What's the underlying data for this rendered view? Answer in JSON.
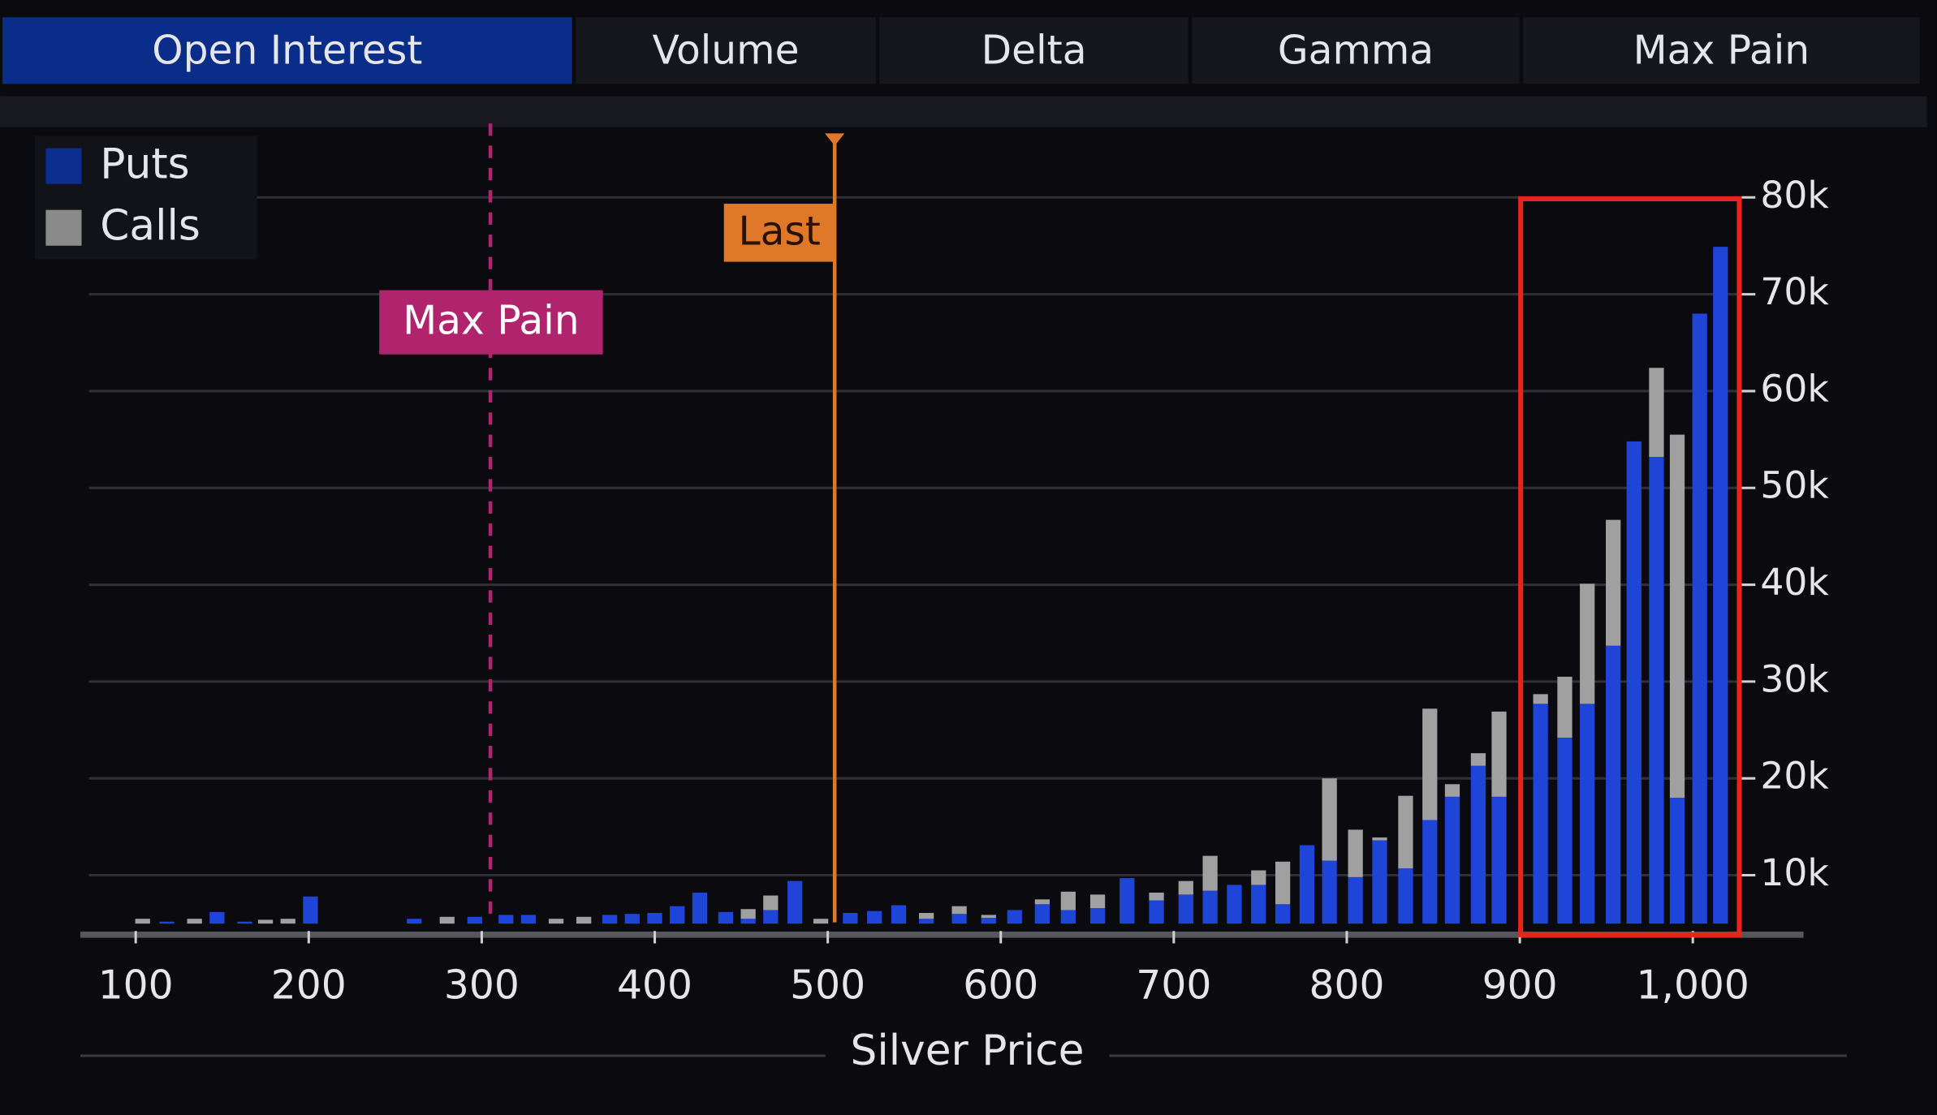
{
  "tabs": [
    "Open Interest",
    "Volume",
    "Delta",
    "Gamma",
    "Max Pain"
  ],
  "active_tab": 0,
  "chart_data": {
    "type": "bar",
    "stacked": true,
    "xlabel": "Silver Price",
    "x": [
      104,
      118,
      134,
      147,
      163,
      175,
      188,
      201,
      261,
      280,
      296,
      314,
      327,
      343,
      359,
      374,
      387,
      400,
      413,
      426,
      441,
      454,
      467,
      481,
      496,
      513,
      527,
      541,
      557,
      576,
      593,
      608,
      624,
      639,
      656,
      673,
      690,
      707,
      721,
      735,
      749,
      763,
      777,
      790,
      805,
      819,
      834,
      848,
      861,
      876,
      888,
      912,
      926,
      939,
      954,
      966,
      979,
      991,
      1004,
      1016
    ],
    "series": [
      {
        "name": "Puts",
        "color": "#1f45d8",
        "legend_color": "#0b2d8e",
        "values": [
          null,
          5200,
          null,
          6200,
          5200,
          null,
          null,
          7800,
          5500,
          null,
          5700,
          5900,
          5900,
          null,
          null,
          5900,
          6000,
          6100,
          6800,
          8200,
          6200,
          5500,
          6400,
          9400,
          null,
          6100,
          6300,
          6900,
          5500,
          6000,
          5600,
          6400,
          7000,
          6400,
          6600,
          9700,
          7400,
          8000,
          8400,
          9000,
          9000,
          7000,
          13100,
          11500,
          9800,
          13600,
          10700,
          15700,
          18100,
          21300,
          18100,
          27700,
          24200,
          27700,
          33700,
          54800,
          53200,
          18000,
          68000,
          74900
        ]
      },
      {
        "name": "Calls",
        "color": "#a0a0a0",
        "legend_color": "#8a8a8a",
        "values": [
          5500,
          null,
          5500,
          null,
          null,
          5400,
          5500,
          null,
          null,
          5700,
          null,
          null,
          null,
          5500,
          5700,
          null,
          null,
          null,
          null,
          null,
          null,
          1000,
          1500,
          null,
          5500,
          null,
          null,
          null,
          600,
          800,
          300,
          null,
          500,
          1900,
          1400,
          null,
          800,
          1400,
          3600,
          null,
          1500,
          4400,
          null,
          8500,
          4900,
          300,
          7500,
          11500,
          1300,
          1300,
          8800,
          1000,
          6300,
          12400,
          13000,
          null,
          9200,
          37500,
          null,
          null
        ]
      }
    ],
    "xlim": [
      68,
      1064
    ],
    "xticks": [
      100,
      200,
      300,
      400,
      500,
      600,
      700,
      800,
      900,
      {
        "value": 1000,
        "label": "1,000"
      }
    ],
    "ylim": [
      5000,
      87000
    ],
    "yticks": [
      {
        "value": 10000,
        "label": "10k"
      },
      {
        "value": 20000,
        "label": "20k"
      },
      {
        "value": 30000,
        "label": "30k"
      },
      {
        "value": 40000,
        "label": "40k"
      },
      {
        "value": 50000,
        "label": "50k"
      },
      {
        "value": 60000,
        "label": "60k"
      },
      {
        "value": 70000,
        "label": "70k"
      },
      {
        "value": 80000,
        "label": "80k"
      }
    ],
    "grid": true,
    "legend": "upper left",
    "annotations": [
      {
        "label": "Max Pain",
        "x": 305,
        "color": "#b0246e",
        "style": "dashed"
      },
      {
        "label": "Last",
        "x": 504,
        "color": "#e0782a",
        "style": "solid"
      }
    ]
  }
}
